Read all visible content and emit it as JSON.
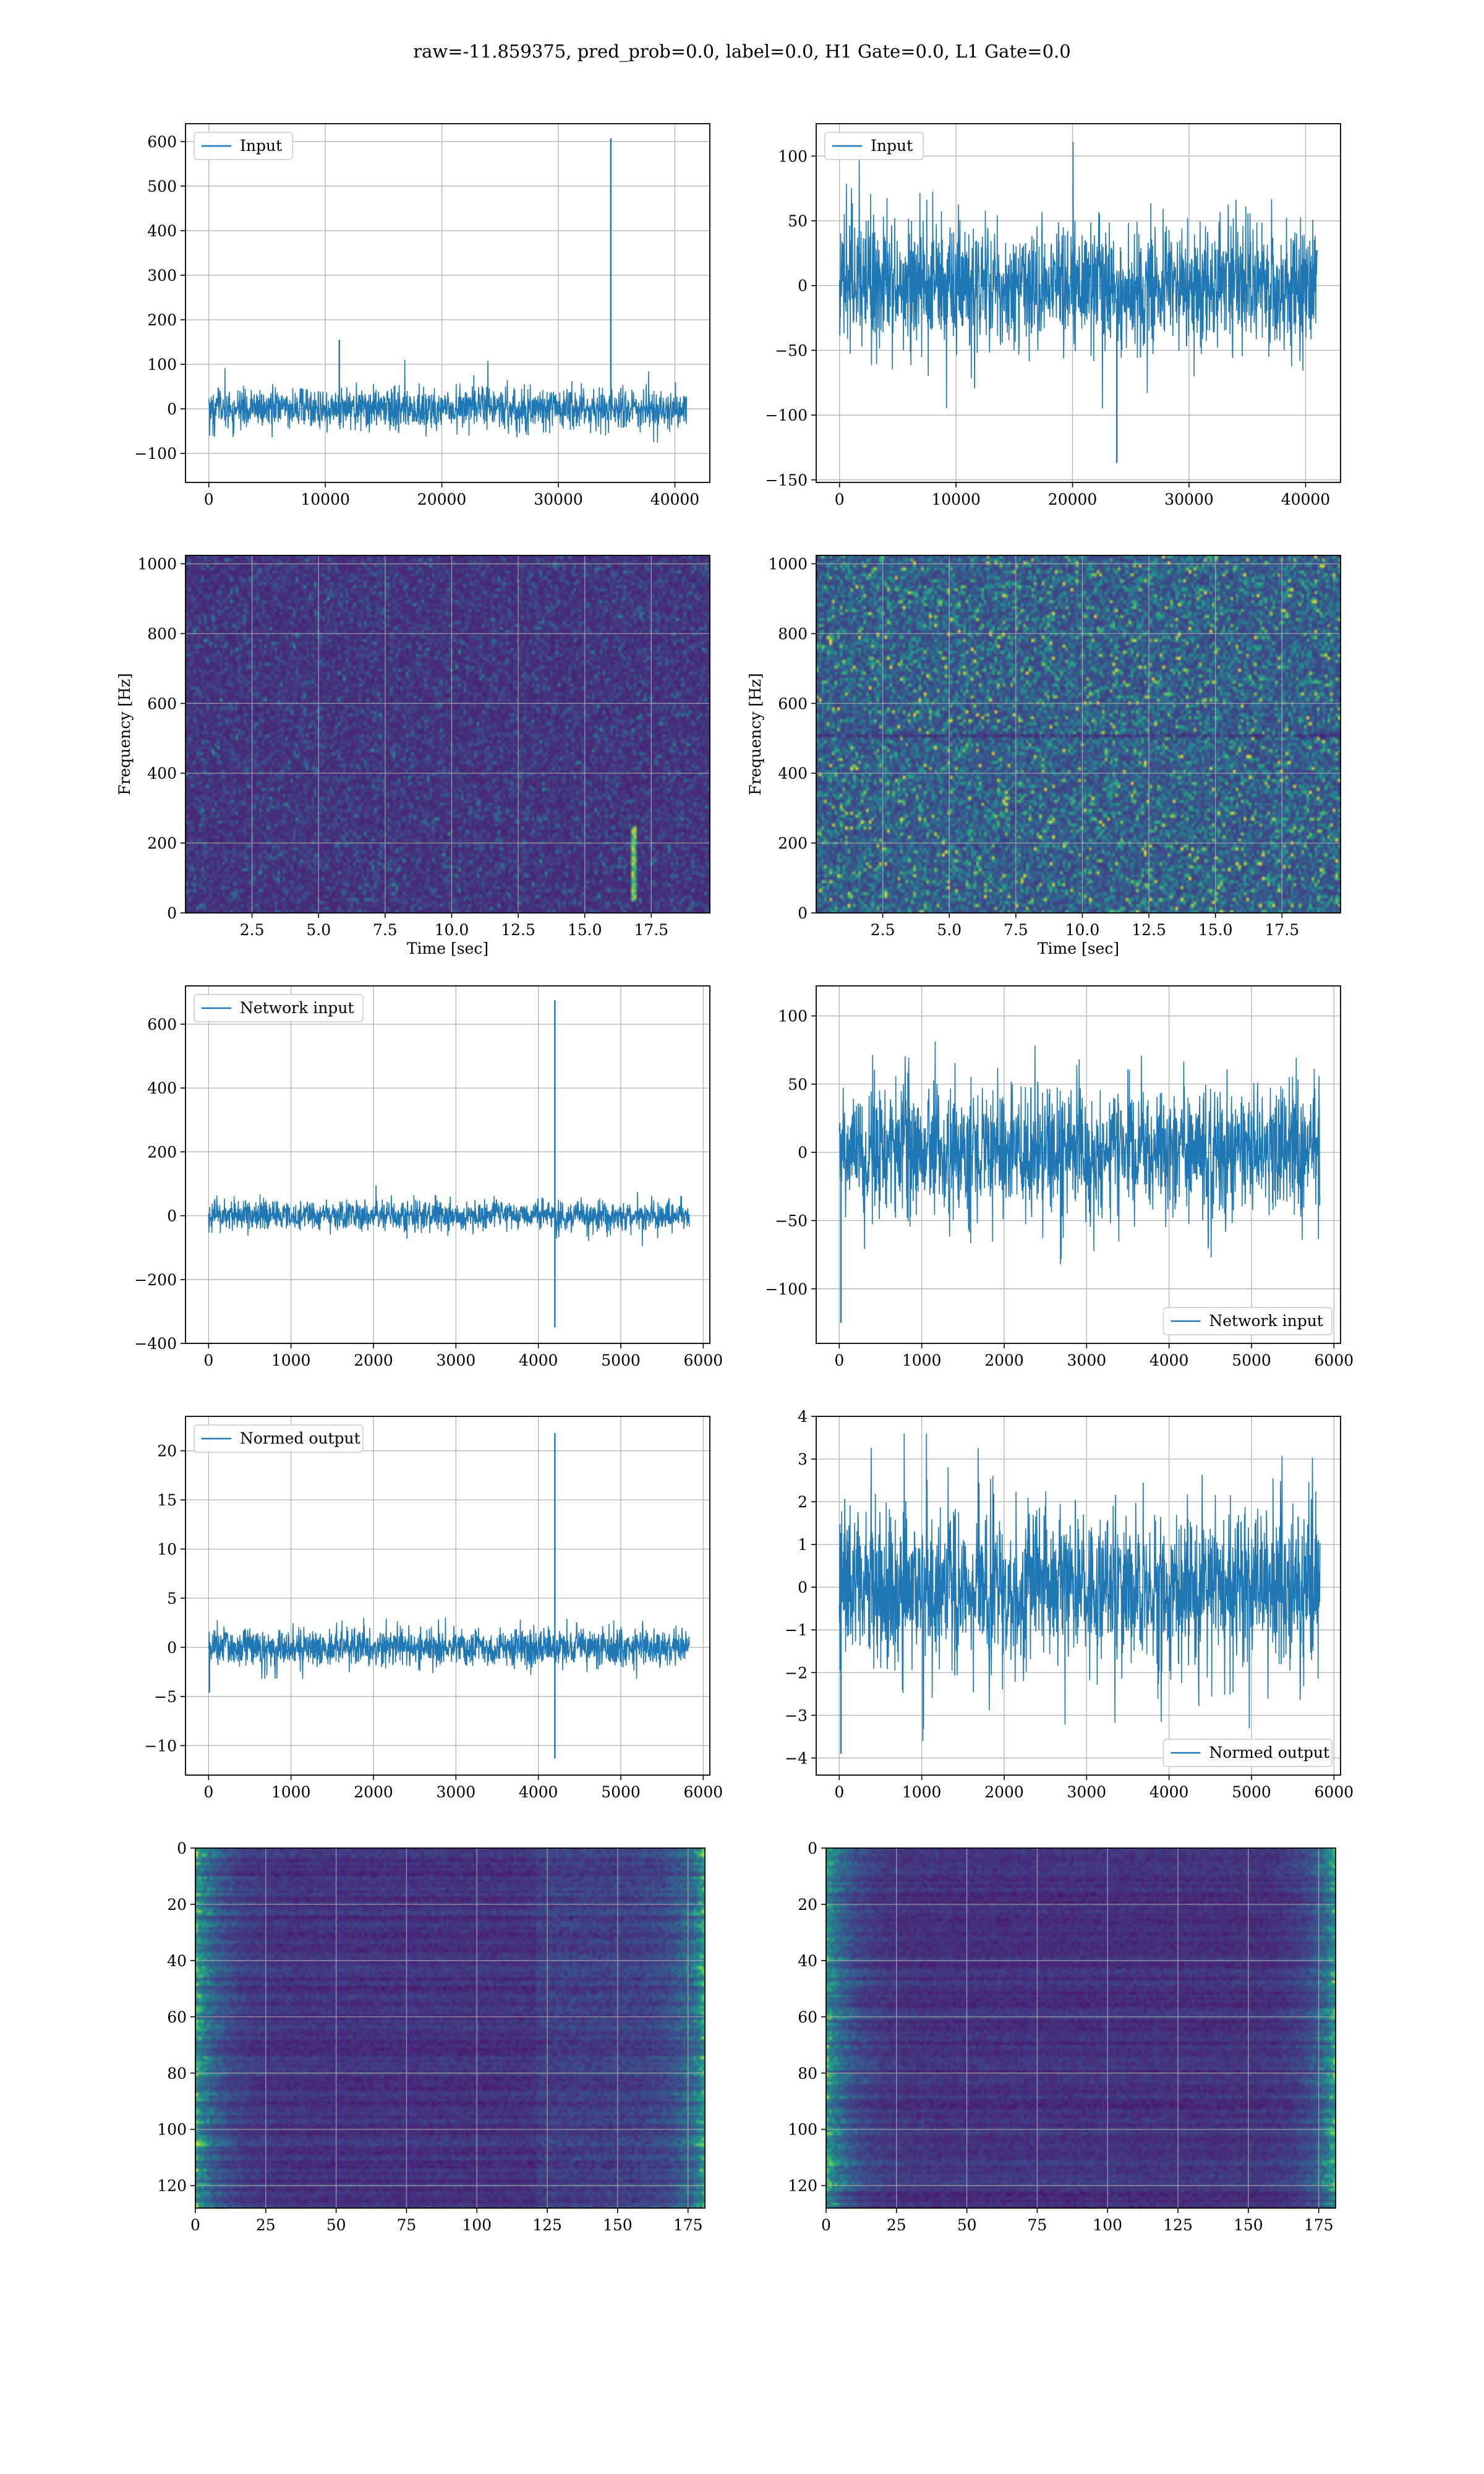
{
  "title": "raw=-11.859375, pred_prob=0.0, label=0.0, H1 Gate=0.0, L1 Gate=0.0",
  "colors": {
    "line": "#1f77b4",
    "grid": "#b0b0b0",
    "viridis_low": "#440154",
    "viridis_high": "#fde725"
  },
  "chart_data": [
    {
      "id": "h1-input",
      "type": "line",
      "series": [
        {
          "name": "Input",
          "color": "#1f77b4"
        }
      ],
      "legend": "upper left",
      "xlim": [
        -2000,
        43000
      ],
      "ylim": [
        -165,
        640
      ],
      "xticks": [
        0,
        10000,
        20000,
        30000,
        40000
      ],
      "yticks": [
        -100,
        0,
        100,
        200,
        300,
        400,
        500,
        600
      ],
      "signal": {
        "x": [
          0,
          41000
        ],
        "noise_sigma": 23,
        "noise_max": 110,
        "spikes": [
          {
            "x": 34500,
            "y": [
              -25,
              607
            ]
          },
          {
            "x": 11200,
            "y": [
              -30,
              155
            ]
          }
        ]
      },
      "grid": true
    },
    {
      "id": "l1-input",
      "type": "line",
      "series": [
        {
          "name": "Input",
          "color": "#1f77b4"
        }
      ],
      "legend": "upper left",
      "xlim": [
        -2000,
        43000
      ],
      "ylim": [
        -152,
        125
      ],
      "xticks": [
        0,
        10000,
        20000,
        30000,
        40000
      ],
      "yticks": [
        -150,
        -100,
        -50,
        0,
        50,
        100
      ],
      "signal": {
        "x": [
          0,
          41000
        ],
        "noise_sigma": 24,
        "noise_max": 122,
        "spikes": [
          {
            "x": 23800,
            "y": [
              -10,
              -137
            ]
          }
        ]
      },
      "grid": true
    },
    {
      "id": "h1-spectrogram",
      "type": "heatmap",
      "colormap": "viridis",
      "xlabel": "Time [sec]",
      "ylabel": "Frequency [Hz]",
      "xlim": [
        0,
        19.7
      ],
      "ylim": [
        0,
        1024
      ],
      "xticks": [
        2.5,
        5.0,
        7.5,
        10.0,
        12.5,
        15.0,
        17.5
      ],
      "xtick_labels": [
        "2.5",
        "5.0",
        "7.5",
        "10.0",
        "12.5",
        "15.0",
        "17.5"
      ],
      "yticks": [
        0,
        200,
        400,
        600,
        800,
        1000
      ],
      "hotspot": {
        "t": 16.8,
        "f": [
          40,
          250
        ]
      },
      "grid": true
    },
    {
      "id": "l1-spectrogram",
      "type": "heatmap",
      "colormap": "viridis",
      "xlabel": "Time [sec]",
      "ylabel": "Frequency [Hz]",
      "xlim": [
        0,
        19.7
      ],
      "ylim": [
        0,
        1024
      ],
      "xticks": [
        2.5,
        5.0,
        7.5,
        10.0,
        12.5,
        15.0,
        17.5
      ],
      "xtick_labels": [
        "2.5",
        "5.0",
        "7.5",
        "10.0",
        "12.5",
        "15.0",
        "17.5"
      ],
      "yticks": [
        0,
        200,
        400,
        600,
        800,
        1000
      ],
      "grid": true
    },
    {
      "id": "h1-network-input",
      "type": "line",
      "series": [
        {
          "name": "Network input",
          "color": "#1f77b4"
        }
      ],
      "legend": "upper left",
      "xlim": [
        -280,
        6080
      ],
      "ylim": [
        -400,
        720
      ],
      "xticks": [
        0,
        1000,
        2000,
        3000,
        4000,
        5000,
        6000
      ],
      "yticks": [
        -400,
        -200,
        0,
        200,
        400,
        600
      ],
      "signal": {
        "x": [
          0,
          5830
        ],
        "noise_sigma": 23,
        "noise_max": 95,
        "spikes": [
          {
            "x": 4200,
            "y": [
              -350,
              675
            ]
          }
        ]
      },
      "grid": true
    },
    {
      "id": "l1-network-input",
      "type": "line",
      "series": [
        {
          "name": "Network input",
          "color": "#1f77b4"
        }
      ],
      "legend": "lower right",
      "xlim": [
        -280,
        6080
      ],
      "ylim": [
        -140,
        122
      ],
      "xticks": [
        0,
        1000,
        2000,
        3000,
        4000,
        5000,
        6000
      ],
      "yticks": [
        -100,
        -50,
        0,
        50,
        100
      ],
      "signal": {
        "x": [
          0,
          5830
        ],
        "noise_sigma": 24,
        "noise_max": 112,
        "spikes": [
          {
            "x": 20,
            "y": [
              -20,
              -125
            ]
          }
        ]
      },
      "grid": true
    },
    {
      "id": "h1-normed-output",
      "type": "line",
      "series": [
        {
          "name": "Normed output",
          "color": "#1f77b4"
        }
      ],
      "legend": "upper left",
      "xlim": [
        -280,
        6080
      ],
      "ylim": [
        -13,
        23.5
      ],
      "xticks": [
        0,
        1000,
        2000,
        3000,
        4000,
        5000,
        6000
      ],
      "yticks": [
        -10,
        -5,
        0,
        5,
        10,
        15,
        20
      ],
      "signal": {
        "x": [
          0,
          5830
        ],
        "noise_sigma": 0.95,
        "noise_max": 3.2,
        "spikes": [
          {
            "x": 4200,
            "y": [
              -11.3,
              21.8
            ]
          },
          {
            "x": 10,
            "y": [
              -0.5,
              -4.6
            ]
          }
        ]
      },
      "grid": true
    },
    {
      "id": "l1-normed-output",
      "type": "line",
      "series": [
        {
          "name": "Normed output",
          "color": "#1f77b4"
        }
      ],
      "legend": "lower right",
      "xlim": [
        -280,
        6080
      ],
      "ylim": [
        -4.4,
        4.0
      ],
      "xticks": [
        0,
        1000,
        2000,
        3000,
        4000,
        5000,
        6000
      ],
      "yticks": [
        -4,
        -3,
        -2,
        -1,
        0,
        1,
        2,
        3,
        4
      ],
      "signal": {
        "x": [
          0,
          5830
        ],
        "noise_sigma": 0.95,
        "noise_max": 3.6,
        "spikes": [
          {
            "x": 20,
            "y": [
              -0.3,
              -3.9
            ]
          }
        ]
      },
      "grid": true
    },
    {
      "id": "h1-features",
      "type": "heatmap",
      "colormap": "viridis",
      "xlim": [
        0,
        181
      ],
      "ylim": [
        128,
        0
      ],
      "xticks": [
        0,
        25,
        50,
        75,
        100,
        125,
        150,
        175
      ],
      "yticks": [
        0,
        20,
        40,
        60,
        80,
        100,
        120
      ],
      "grid": true
    },
    {
      "id": "l1-features",
      "type": "heatmap",
      "colormap": "viridis",
      "xlim": [
        0,
        181
      ],
      "ylim": [
        128,
        0
      ],
      "xticks": [
        0,
        25,
        50,
        75,
        100,
        125,
        150,
        175
      ],
      "yticks": [
        0,
        20,
        40,
        60,
        80,
        100,
        120
      ],
      "grid": true
    }
  ]
}
